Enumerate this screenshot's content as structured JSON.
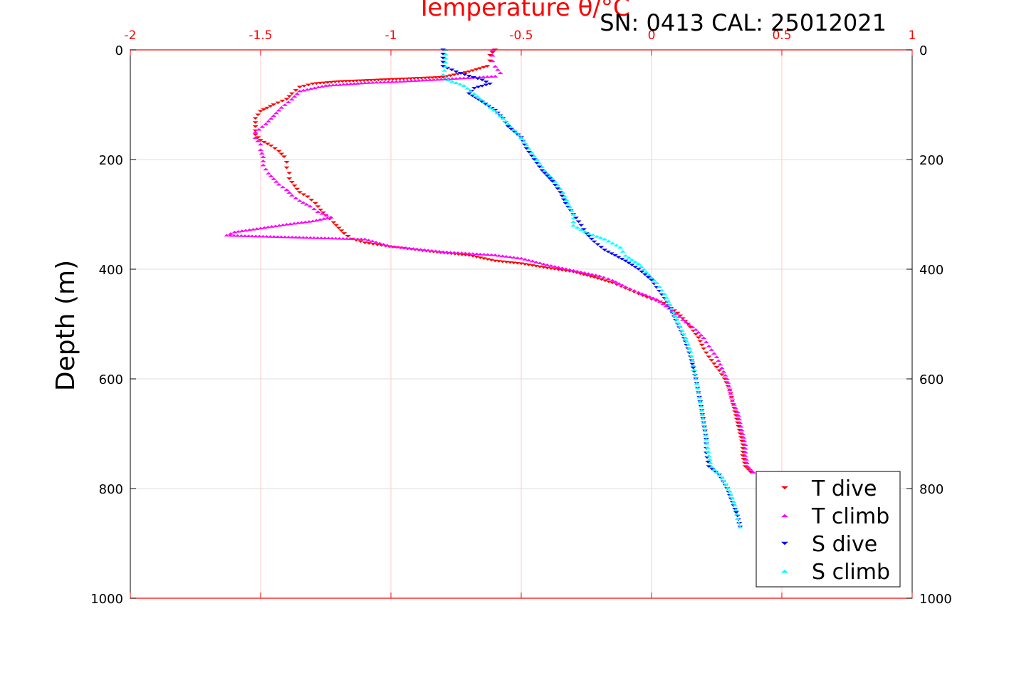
{
  "chart_data": {
    "type": "scatter",
    "title": "Temperature θ/°C",
    "subtitle": "SN: 0413  CAL: 25012021",
    "xlabel": "Temperature θ/°C",
    "ylabel": "Depth (m)",
    "xlim": [
      -2,
      1
    ],
    "ylim": [
      0,
      1000
    ],
    "y_reversed": true,
    "grid": true,
    "legend_position": "bottom-right",
    "x_ticks": [
      "-2",
      "-1.5",
      "-1",
      "-0.5",
      "0",
      "0.5",
      "1"
    ],
    "x_tick_values": [
      -2,
      -1.5,
      -1,
      -0.5,
      0,
      0.5,
      1
    ],
    "y_ticks": [
      "0",
      "200",
      "400",
      "600",
      "800",
      "1000"
    ],
    "y_tick_values": [
      0,
      200,
      400,
      600,
      800,
      1000
    ],
    "series": [
      {
        "name": "T dive",
        "color": "#ff0000",
        "marker": "triangle-down",
        "points": [
          [
            -0.6,
            0
          ],
          [
            -0.62,
            10
          ],
          [
            -0.62,
            20
          ],
          [
            -0.63,
            30
          ],
          [
            -0.7,
            40
          ],
          [
            -0.8,
            50
          ],
          [
            -1.2,
            58
          ],
          [
            -1.3,
            62
          ],
          [
            -1.35,
            68
          ],
          [
            -1.38,
            80
          ],
          [
            -1.4,
            90
          ],
          [
            -1.45,
            100
          ],
          [
            -1.5,
            112
          ],
          [
            -1.52,
            125
          ],
          [
            -1.52,
            140
          ],
          [
            -1.52,
            155
          ],
          [
            -1.5,
            165
          ],
          [
            -1.46,
            175
          ],
          [
            -1.43,
            185
          ],
          [
            -1.41,
            195
          ],
          [
            -1.4,
            205
          ],
          [
            -1.4,
            215
          ],
          [
            -1.39,
            225
          ],
          [
            -1.39,
            235
          ],
          [
            -1.37,
            248
          ],
          [
            -1.35,
            260
          ],
          [
            -1.32,
            268
          ],
          [
            -1.29,
            280
          ],
          [
            -1.27,
            292
          ],
          [
            -1.25,
            302
          ],
          [
            -1.22,
            315
          ],
          [
            -1.2,
            325
          ],
          [
            -1.18,
            335
          ],
          [
            -1.15,
            345
          ],
          [
            -1.1,
            352
          ],
          [
            -1.02,
            358
          ],
          [
            -0.95,
            362
          ],
          [
            -0.85,
            368
          ],
          [
            -0.7,
            375
          ],
          [
            -0.6,
            385
          ],
          [
            -0.5,
            390
          ],
          [
            -0.4,
            398
          ],
          [
            -0.3,
            405
          ],
          [
            -0.22,
            415
          ],
          [
            -0.15,
            425
          ],
          [
            -0.1,
            435
          ],
          [
            -0.05,
            445
          ],
          [
            0,
            455
          ],
          [
            0.05,
            462
          ],
          [
            0.1,
            480
          ],
          [
            0.14,
            500
          ],
          [
            0.18,
            525
          ],
          [
            0.2,
            545
          ],
          [
            0.22,
            560
          ],
          [
            0.26,
            585
          ],
          [
            0.28,
            600
          ],
          [
            0.3,
            620
          ],
          [
            0.31,
            640
          ],
          [
            0.32,
            660
          ],
          [
            0.33,
            680
          ],
          [
            0.34,
            700
          ],
          [
            0.35,
            720
          ],
          [
            0.35,
            740
          ],
          [
            0.36,
            760
          ],
          [
            0.38,
            770
          ]
        ]
      },
      {
        "name": "T climb",
        "color": "#ff00ff",
        "marker": "triangle-up",
        "points": [
          [
            -0.61,
            0
          ],
          [
            -0.61,
            10
          ],
          [
            -0.61,
            20
          ],
          [
            -0.6,
            30
          ],
          [
            -0.58,
            42
          ],
          [
            -0.6,
            48
          ],
          [
            -0.75,
            52
          ],
          [
            -0.95,
            57
          ],
          [
            -1.1,
            60
          ],
          [
            -1.25,
            65
          ],
          [
            -1.35,
            75
          ],
          [
            -1.38,
            90
          ],
          [
            -1.42,
            105
          ],
          [
            -1.45,
            120
          ],
          [
            -1.48,
            135
          ],
          [
            -1.52,
            150
          ],
          [
            -1.52,
            160
          ],
          [
            -1.5,
            172
          ],
          [
            -1.5,
            182
          ],
          [
            -1.49,
            195
          ],
          [
            -1.49,
            210
          ],
          [
            -1.47,
            225
          ],
          [
            -1.45,
            235
          ],
          [
            -1.43,
            245
          ],
          [
            -1.4,
            255
          ],
          [
            -1.38,
            265
          ],
          [
            -1.35,
            275
          ],
          [
            -1.31,
            285
          ],
          [
            -1.28,
            295
          ],
          [
            -1.23,
            305
          ],
          [
            -1.3,
            312
          ],
          [
            -1.4,
            318
          ],
          [
            -1.5,
            325
          ],
          [
            -1.6,
            332
          ],
          [
            -1.63,
            338
          ],
          [
            -1.1,
            345
          ],
          [
            -1.0,
            358
          ],
          [
            -0.8,
            368
          ],
          [
            -0.6,
            374
          ],
          [
            -0.5,
            380
          ],
          [
            -0.4,
            392
          ],
          [
            -0.3,
            402
          ],
          [
            -0.2,
            412
          ],
          [
            -0.15,
            420
          ],
          [
            -0.1,
            432
          ],
          [
            -0.05,
            442
          ],
          [
            0.02,
            455
          ],
          [
            0.08,
            475
          ],
          [
            0.12,
            492
          ],
          [
            0.17,
            510
          ],
          [
            0.2,
            525
          ],
          [
            0.22,
            540
          ],
          [
            0.25,
            560
          ],
          [
            0.27,
            580
          ],
          [
            0.29,
            600
          ],
          [
            0.3,
            620
          ],
          [
            0.31,
            640
          ],
          [
            0.33,
            660
          ],
          [
            0.34,
            680
          ],
          [
            0.35,
            700
          ],
          [
            0.36,
            720
          ],
          [
            0.36,
            740
          ],
          [
            0.37,
            760
          ],
          [
            0.39,
            770
          ]
        ]
      },
      {
        "name": "S dive",
        "color": "#0000ff",
        "marker": "triangle-down",
        "points": [
          [
            -0.8,
            0
          ],
          [
            -0.8,
            15
          ],
          [
            -0.8,
            30
          ],
          [
            -0.75,
            40
          ],
          [
            -0.7,
            48
          ],
          [
            -0.65,
            55
          ],
          [
            -0.62,
            62
          ],
          [
            -0.68,
            70
          ],
          [
            -0.7,
            80
          ],
          [
            -0.65,
            95
          ],
          [
            -0.6,
            110
          ],
          [
            -0.57,
            125
          ],
          [
            -0.55,
            140
          ],
          [
            -0.5,
            160
          ],
          [
            -0.48,
            180
          ],
          [
            -0.45,
            200
          ],
          [
            -0.42,
            220
          ],
          [
            -0.38,
            240
          ],
          [
            -0.35,
            260
          ],
          [
            -0.33,
            280
          ],
          [
            -0.3,
            300
          ],
          [
            -0.27,
            320
          ],
          [
            -0.25,
            335
          ],
          [
            -0.22,
            350
          ],
          [
            -0.18,
            365
          ],
          [
            -0.1,
            385
          ],
          [
            -0.05,
            400
          ],
          [
            0,
            420
          ],
          [
            0.03,
            440
          ],
          [
            0.06,
            460
          ],
          [
            0.08,
            480
          ],
          [
            0.1,
            500
          ],
          [
            0.12,
            520
          ],
          [
            0.14,
            545
          ],
          [
            0.15,
            560
          ],
          [
            0.16,
            580
          ],
          [
            0.17,
            600
          ],
          [
            0.18,
            625
          ],
          [
            0.19,
            650
          ],
          [
            0.2,
            680
          ],
          [
            0.21,
            710
          ],
          [
            0.21,
            735
          ],
          [
            0.22,
            760
          ],
          [
            0.26,
            775
          ],
          [
            0.29,
            800
          ],
          [
            0.31,
            825
          ],
          [
            0.33,
            850
          ],
          [
            0.34,
            870
          ]
        ]
      },
      {
        "name": "S climb",
        "color": "#00ffff",
        "marker": "triangle-up",
        "points": [
          [
            -0.79,
            0
          ],
          [
            -0.79,
            15
          ],
          [
            -0.79,
            30
          ],
          [
            -0.8,
            45
          ],
          [
            -0.78,
            55
          ],
          [
            -0.72,
            65
          ],
          [
            -0.68,
            80
          ],
          [
            -0.63,
            100
          ],
          [
            -0.58,
            120
          ],
          [
            -0.54,
            140
          ],
          [
            -0.5,
            160
          ],
          [
            -0.47,
            180
          ],
          [
            -0.44,
            200
          ],
          [
            -0.41,
            220
          ],
          [
            -0.37,
            240
          ],
          [
            -0.34,
            260
          ],
          [
            -0.32,
            280
          ],
          [
            -0.3,
            300
          ],
          [
            -0.3,
            320
          ],
          [
            -0.24,
            335
          ],
          [
            -0.18,
            345
          ],
          [
            -0.12,
            360
          ],
          [
            -0.1,
            375
          ],
          [
            -0.05,
            390
          ],
          [
            -0.02,
            405
          ],
          [
            0.02,
            425
          ],
          [
            0.05,
            445
          ],
          [
            0.07,
            465
          ],
          [
            0.09,
            485
          ],
          [
            0.11,
            505
          ],
          [
            0.13,
            525
          ],
          [
            0.15,
            550
          ],
          [
            0.16,
            575
          ],
          [
            0.17,
            600
          ],
          [
            0.18,
            625
          ],
          [
            0.19,
            650
          ],
          [
            0.2,
            680
          ],
          [
            0.21,
            710
          ],
          [
            0.22,
            740
          ],
          [
            0.23,
            760
          ],
          [
            0.27,
            780
          ],
          [
            0.3,
            805
          ],
          [
            0.32,
            830
          ],
          [
            0.33,
            855
          ],
          [
            0.34,
            870
          ]
        ]
      }
    ]
  }
}
